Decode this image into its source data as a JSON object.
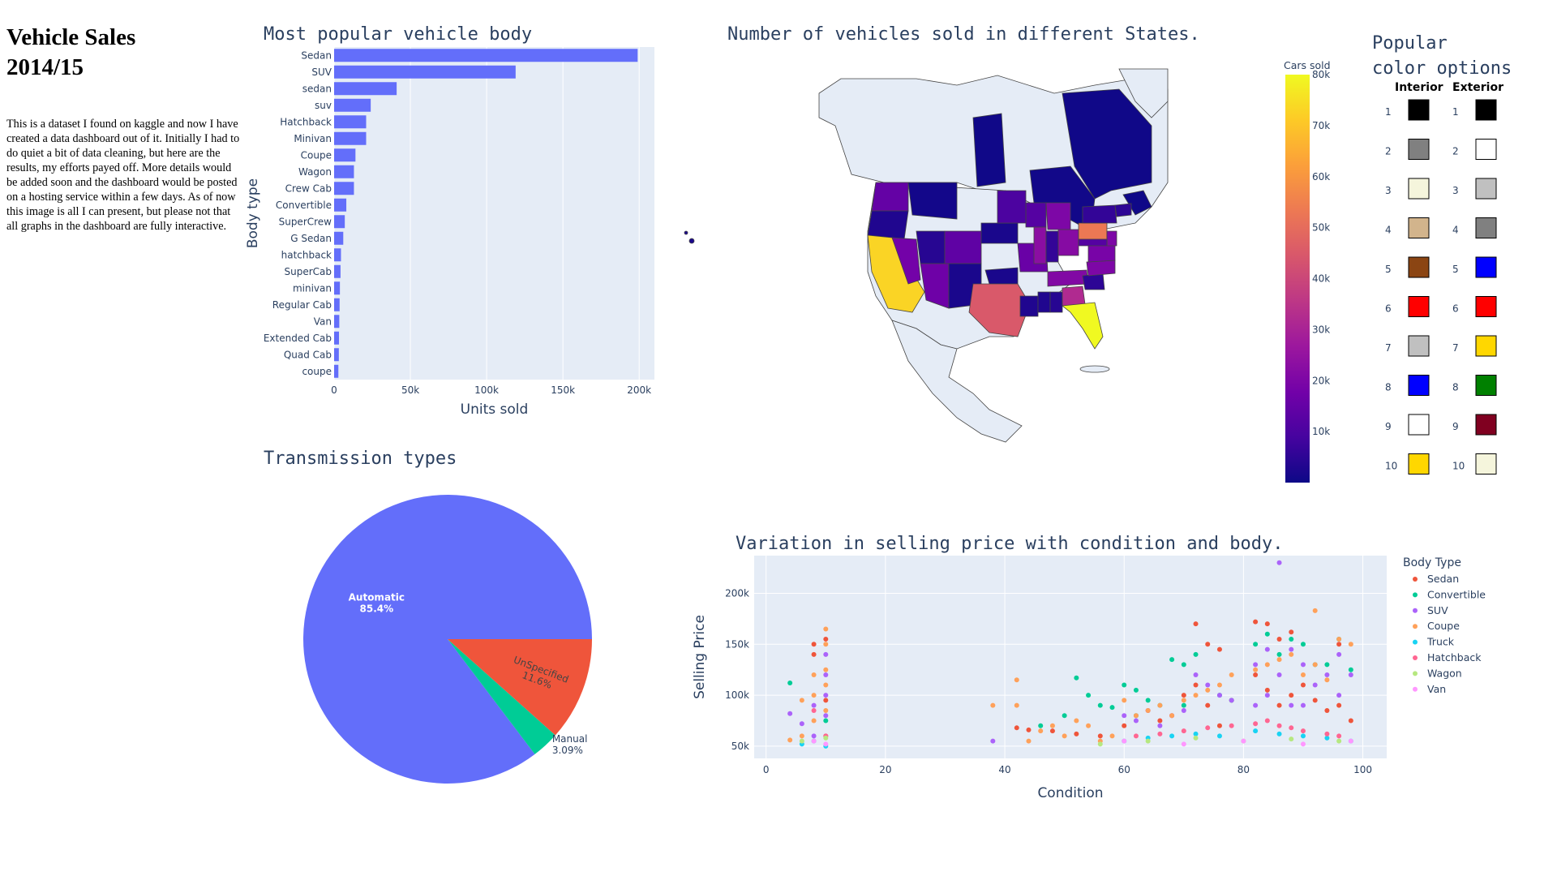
{
  "page": {
    "title": "Vehicle Sales\n2014/15",
    "description": "This is a dataset I found on kaggle and now I have created a data dashboard out of it. Initially I had to do quiet a bit of data cleaning, but here are the results, my efforts payed off. More details would be added soon and the dashboard would be posted on a hosting service within a few days. As of now this image is all I can present, but please not that all graphs in the dashboard are fully interactive."
  },
  "chart_data": [
    {
      "type": "bar",
      "orientation": "horizontal",
      "title": "Most popular vehicle body",
      "xlabel": "Units sold",
      "ylabel": "Body type",
      "xlim": [
        0,
        210000
      ],
      "xticks": [
        0,
        50000,
        100000,
        150000,
        200000
      ],
      "xtick_labels": [
        "0",
        "50k",
        "100k",
        "150k",
        "200k"
      ],
      "color": "#636efa",
      "categories": [
        "Sedan",
        "SUV",
        "sedan",
        "suv",
        "Hatchback",
        "Minivan",
        "Coupe",
        "Wagon",
        "Crew Cab",
        "Convertible",
        "SuperCrew",
        "G Sedan",
        "hatchback",
        "SuperCab",
        "minivan",
        "Regular Cab",
        "Van",
        "Extended Cab",
        "Quad Cab",
        "coupe"
      ],
      "values": [
        199000,
        119000,
        41000,
        24000,
        21000,
        21000,
        14000,
        13000,
        13000,
        8000,
        7000,
        6000,
        4500,
        4200,
        3800,
        3600,
        3400,
        3200,
        3100,
        2800
      ]
    },
    {
      "type": "pie",
      "title": "Transmission types",
      "labels": [
        "Automatic",
        "UnSpecified",
        "Manual"
      ],
      "values": [
        85.4,
        11.6,
        3.09
      ],
      "display_text": [
        "85.4%",
        "11.6%",
        "3.09%"
      ],
      "colors": [
        "#636efa",
        "#ef553b",
        "#00cc96"
      ]
    },
    {
      "type": "choropleth",
      "title": "Number of vehicles sold in different States.",
      "colorbar_title": "Cars sold",
      "colorbar_range": [
        0,
        80000
      ],
      "colorbar_ticks": [
        10000,
        20000,
        30000,
        40000,
        50000,
        60000,
        70000,
        80000
      ],
      "colorbar_tick_labels": [
        "10k",
        "20k",
        "30k",
        "40k",
        "50k",
        "60k",
        "70k",
        "80k"
      ],
      "colorscale": [
        "#0d0887",
        "#46039f",
        "#7201a8",
        "#9c179e",
        "#bd3786",
        "#d8576b",
        "#ed7953",
        "#fb9f3a",
        "#fdca26",
        "#f0f921"
      ],
      "regions": [
        {
          "name": "California",
          "value": 73000
        },
        {
          "name": "Florida",
          "value": 80000
        },
        {
          "name": "Texas",
          "value": 45000
        },
        {
          "name": "Pennsylvania",
          "value": 53000
        },
        {
          "name": "Georgia",
          "value": 32000
        },
        {
          "name": "Ohio",
          "value": 22000
        },
        {
          "name": "Michigan",
          "value": 20000
        },
        {
          "name": "Illinois",
          "value": 23000
        },
        {
          "name": "North Carolina",
          "value": 20000
        },
        {
          "name": "Tennessee",
          "value": 21000
        },
        {
          "name": "Virginia",
          "value": 19000
        },
        {
          "name": "New Jersey",
          "value": 20000
        },
        {
          "name": "Nevada",
          "value": 18000
        },
        {
          "name": "Washington",
          "value": 15000
        },
        {
          "name": "Missouri",
          "value": 16000
        },
        {
          "name": "Arizona",
          "value": 17000
        },
        {
          "name": "Colorado",
          "value": 14000
        },
        {
          "name": "Wisconsin",
          "value": 12000
        },
        {
          "name": "Minnesota",
          "value": 10000
        },
        {
          "name": "Maryland",
          "value": 12000
        },
        {
          "name": "Oregon",
          "value": 3000
        },
        {
          "name": "Utah",
          "value": 4000
        },
        {
          "name": "New Mexico",
          "value": 2000
        },
        {
          "name": "Oklahoma",
          "value": 2000
        },
        {
          "name": "Louisiana",
          "value": 3000
        },
        {
          "name": "Mississippi",
          "value": 3000
        },
        {
          "name": "Alabama",
          "value": 4000
        },
        {
          "name": "South Carolina",
          "value": 5000
        },
        {
          "name": "Indiana",
          "value": 6000
        },
        {
          "name": "Nebraska",
          "value": 2000
        },
        {
          "name": "Massachusetts",
          "value": 5000
        },
        {
          "name": "New York",
          "value": 6000
        },
        {
          "name": "Montana",
          "value": 1000
        },
        {
          "name": "Hawaii",
          "value": 2000
        },
        {
          "name": "Quebec",
          "value": 500
        },
        {
          "name": "Ontario",
          "value": 800
        },
        {
          "name": "Alberta",
          "value": 400
        },
        {
          "name": "Nova Scotia",
          "value": 300
        }
      ]
    },
    {
      "type": "table",
      "title": "Popular\ncolor options",
      "columns": [
        "Interior",
        "Exterior"
      ],
      "rows": [
        {
          "rank": "1",
          "interior": "#000000",
          "exterior": "#000000"
        },
        {
          "rank": "2",
          "interior": "#808080",
          "exterior": "#ffffff"
        },
        {
          "rank": "3",
          "interior": "#f5f5dc",
          "exterior": "#c0c0c0"
        },
        {
          "rank": "4",
          "interior": "#d2b48c",
          "exterior": "#808080"
        },
        {
          "rank": "5",
          "interior": "#8b4513",
          "exterior": "#0000ff"
        },
        {
          "rank": "6",
          "interior": "#ff0000",
          "exterior": "#ff0000"
        },
        {
          "rank": "7",
          "interior": "#c0c0c0",
          "exterior": "#ffd700"
        },
        {
          "rank": "8",
          "interior": "#0000ff",
          "exterior": "#008000"
        },
        {
          "rank": "9",
          "interior": "#ffffff",
          "exterior": "#800020"
        },
        {
          "rank": "10",
          "interior": "#ffd700",
          "exterior": "#f5f5dc"
        }
      ]
    },
    {
      "type": "scatter",
      "title": "Variation in selling price with condition and body.",
      "xlabel": "Condition",
      "ylabel": "Selling Price",
      "xlim": [
        -2,
        104
      ],
      "ylim": [
        38000,
        237000
      ],
      "xticks": [
        0,
        20,
        40,
        60,
        80,
        100
      ],
      "yticks": [
        50000,
        100000,
        150000,
        200000
      ],
      "ytick_labels": [
        "50k",
        "100k",
        "150k",
        "200k"
      ],
      "legend_title": "Body Type",
      "legend_position": "right",
      "series": [
        {
          "name": "Sedan",
          "color": "#ef553b",
          "x": [
            8,
            8,
            10,
            10,
            10,
            42,
            44,
            48,
            52,
            56,
            60,
            64,
            66,
            68,
            70,
            72,
            72,
            74,
            74,
            76,
            76,
            78,
            82,
            82,
            84,
            84,
            86,
            86,
            88,
            88,
            90,
            92,
            94,
            96,
            96,
            98
          ],
          "y": [
            150000,
            140000,
            155000,
            95000,
            60000,
            68000,
            66000,
            65000,
            62000,
            60000,
            70000,
            85000,
            75000,
            80000,
            100000,
            170000,
            110000,
            150000,
            90000,
            145000,
            70000,
            95000,
            172000,
            120000,
            170000,
            105000,
            155000,
            90000,
            162000,
            100000,
            110000,
            95000,
            85000,
            150000,
            90000,
            75000
          ]
        },
        {
          "name": "Convertible",
          "color": "#00cc96",
          "x": [
            4,
            10,
            46,
            50,
            52,
            54,
            56,
            58,
            60,
            62,
            62,
            64,
            66,
            68,
            70,
            70,
            72,
            76,
            78,
            82,
            84,
            86,
            88,
            90,
            92,
            94,
            96,
            98
          ],
          "y": [
            112000,
            75000,
            70000,
            80000,
            117000,
            100000,
            90000,
            88000,
            110000,
            105000,
            80000,
            95000,
            90000,
            135000,
            130000,
            90000,
            140000,
            100000,
            95000,
            150000,
            160000,
            140000,
            155000,
            150000,
            130000,
            130000,
            155000,
            125000
          ]
        },
        {
          "name": "SUV",
          "color": "#ab63fa",
          "x": [
            4,
            6,
            8,
            8,
            10,
            10,
            10,
            10,
            38,
            60,
            62,
            64,
            66,
            68,
            70,
            72,
            74,
            76,
            78,
            82,
            82,
            84,
            84,
            86,
            86,
            88,
            88,
            90,
            90,
            92,
            94,
            96,
            96,
            98
          ],
          "y": [
            82000,
            72000,
            90000,
            60000,
            140000,
            120000,
            100000,
            80000,
            55000,
            80000,
            75000,
            85000,
            70000,
            80000,
            85000,
            120000,
            110000,
            100000,
            95000,
            130000,
            90000,
            145000,
            100000,
            230000,
            120000,
            145000,
            90000,
            130000,
            90000,
            110000,
            120000,
            140000,
            100000,
            120000
          ]
        },
        {
          "name": "Coupe",
          "color": "#ffa15a",
          "x": [
            4,
            6,
            6,
            8,
            8,
            8,
            10,
            10,
            10,
            10,
            10,
            38,
            42,
            42,
            44,
            46,
            48,
            50,
            52,
            54,
            56,
            58,
            60,
            62,
            64,
            66,
            68,
            70,
            72,
            74,
            76,
            78,
            82,
            84,
            86,
            88,
            90,
            92,
            92,
            94,
            96,
            98
          ],
          "y": [
            56000,
            95000,
            60000,
            120000,
            100000,
            75000,
            165000,
            150000,
            125000,
            110000,
            85000,
            90000,
            115000,
            90000,
            55000,
            65000,
            70000,
            60000,
            75000,
            70000,
            55000,
            60000,
            95000,
            80000,
            85000,
            90000,
            80000,
            95000,
            100000,
            105000,
            110000,
            120000,
            125000,
            130000,
            135000,
            140000,
            120000,
            183000,
            130000,
            115000,
            155000,
            150000
          ]
        },
        {
          "name": "Truck",
          "color": "#19d3f3",
          "x": [
            6,
            8,
            10,
            60,
            64,
            68,
            72,
            76,
            82,
            86,
            90,
            94,
            98
          ],
          "y": [
            52000,
            55000,
            50000,
            55000,
            58000,
            60000,
            62000,
            60000,
            65000,
            62000,
            60000,
            58000,
            55000
          ]
        },
        {
          "name": "Hatchback",
          "color": "#ff6692",
          "x": [
            8,
            10,
            62,
            66,
            70,
            74,
            78,
            82,
            84,
            86,
            88,
            90,
            94,
            96
          ],
          "y": [
            85000,
            60000,
            60000,
            62000,
            65000,
            68000,
            70000,
            72000,
            75000,
            70000,
            68000,
            65000,
            62000,
            60000
          ]
        },
        {
          "name": "Wagon",
          "color": "#b6e880",
          "x": [
            6,
            10,
            56,
            64,
            72,
            80,
            88,
            96
          ],
          "y": [
            55000,
            58000,
            52000,
            55000,
            58000,
            55000,
            57000,
            55000
          ]
        },
        {
          "name": "Van",
          "color": "#ff97ff",
          "x": [
            8,
            10,
            60,
            70,
            80,
            90,
            98
          ],
          "y": [
            55000,
            52000,
            55000,
            52000,
            55000,
            52000,
            55000
          ]
        }
      ]
    }
  ]
}
